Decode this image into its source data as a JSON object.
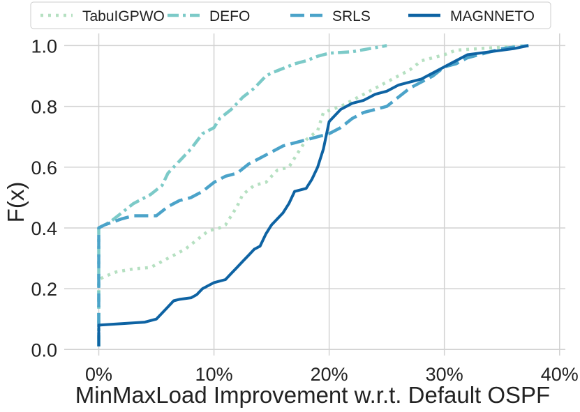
{
  "chart_data": {
    "type": "line",
    "title": "",
    "xlabel": "MinMaxLoad Improvement w.r.t. Default OSPF",
    "ylabel": "F(x)",
    "xlim": [
      -3,
      40.5
    ],
    "ylim": [
      -0.02,
      1.04
    ],
    "xticks": [
      0,
      10,
      20,
      30,
      40
    ],
    "xtick_labels": [
      "0%",
      "10%",
      "20%",
      "30%",
      "40%"
    ],
    "yticks": [
      0.0,
      0.2,
      0.4,
      0.6,
      0.8,
      1.0
    ],
    "ytick_labels": [
      "0.0",
      "0.2",
      "0.4",
      "0.6",
      "0.8",
      "1.0"
    ],
    "grid": true,
    "legend_position": "top",
    "series": [
      {
        "name": "TabuIGPWO",
        "color": "#b5e0c1",
        "dash": "dotted",
        "x": [
          0,
          0,
          0.5,
          1.5,
          3,
          4.5,
          5.5,
          6.5,
          7.5,
          8.5,
          9.5,
          10.5,
          11,
          11.5,
          12,
          12.5,
          13.5,
          14.5,
          15,
          15.5,
          16.5,
          17,
          17.5,
          18,
          19,
          19.5,
          21,
          23,
          25,
          27,
          28,
          30,
          31,
          33,
          35,
          37.3
        ],
        "y": [
          0.01,
          0.23,
          0.24,
          0.255,
          0.265,
          0.27,
          0.29,
          0.31,
          0.33,
          0.36,
          0.39,
          0.4,
          0.41,
          0.44,
          0.47,
          0.51,
          0.54,
          0.55,
          0.57,
          0.59,
          0.6,
          0.63,
          0.66,
          0.69,
          0.72,
          0.78,
          0.8,
          0.84,
          0.88,
          0.92,
          0.95,
          0.97,
          0.985,
          0.99,
          0.995,
          1.0
        ]
      },
      {
        "name": "DEFO",
        "color": "#7ccac8",
        "dash": "dashdot",
        "x": [
          0,
          0,
          1,
          2,
          3,
          4.5,
          5.5,
          6,
          7,
          8,
          9,
          10,
          10.5,
          11.5,
          12.5,
          13.5,
          14.5,
          15,
          16,
          17,
          18,
          19,
          20,
          22,
          23.5,
          25
        ],
        "y": [
          0.01,
          0.4,
          0.42,
          0.45,
          0.48,
          0.51,
          0.54,
          0.58,
          0.62,
          0.66,
          0.71,
          0.73,
          0.76,
          0.79,
          0.83,
          0.86,
          0.9,
          0.91,
          0.925,
          0.94,
          0.95,
          0.965,
          0.975,
          0.98,
          0.99,
          1.0
        ]
      },
      {
        "name": "SRLS",
        "color": "#4ba3c9",
        "dash": "dashed",
        "x": [
          0,
          0,
          0.5,
          2,
          3,
          5,
          6,
          7,
          8,
          9,
          10,
          11,
          12,
          13,
          14,
          15,
          16,
          17,
          18,
          19,
          20,
          21,
          22,
          23,
          24,
          25,
          26,
          27,
          28,
          29,
          30,
          31,
          32,
          33,
          34,
          35,
          36,
          37.3
        ],
        "y": [
          0.01,
          0.4,
          0.41,
          0.43,
          0.44,
          0.44,
          0.47,
          0.49,
          0.5,
          0.52,
          0.55,
          0.57,
          0.58,
          0.61,
          0.63,
          0.65,
          0.67,
          0.68,
          0.69,
          0.7,
          0.71,
          0.73,
          0.76,
          0.78,
          0.79,
          0.8,
          0.83,
          0.86,
          0.88,
          0.9,
          0.93,
          0.94,
          0.96,
          0.97,
          0.98,
          0.99,
          0.995,
          1.0
        ]
      },
      {
        "name": "MAGNNETO",
        "color": "#0e63a3",
        "dash": "solid",
        "x": [
          0,
          0,
          2,
          4,
          5,
          5.5,
          6,
          6.5,
          7,
          8,
          8.5,
          9,
          10,
          11,
          11.5,
          12,
          12.5,
          13,
          13.5,
          14,
          14.5,
          15,
          15.5,
          16,
          16.5,
          17,
          18,
          18.5,
          19,
          19.5,
          20,
          21,
          22,
          23,
          24,
          25,
          26,
          27,
          28,
          29,
          30,
          31,
          32,
          34,
          36,
          37.3
        ],
        "y": [
          0.01,
          0.08,
          0.085,
          0.09,
          0.1,
          0.12,
          0.14,
          0.16,
          0.165,
          0.17,
          0.18,
          0.2,
          0.22,
          0.23,
          0.25,
          0.27,
          0.29,
          0.31,
          0.33,
          0.34,
          0.38,
          0.41,
          0.43,
          0.45,
          0.48,
          0.52,
          0.53,
          0.56,
          0.6,
          0.66,
          0.75,
          0.79,
          0.81,
          0.82,
          0.84,
          0.85,
          0.87,
          0.88,
          0.89,
          0.91,
          0.93,
          0.95,
          0.97,
          0.98,
          0.99,
          1.0
        ]
      }
    ]
  }
}
